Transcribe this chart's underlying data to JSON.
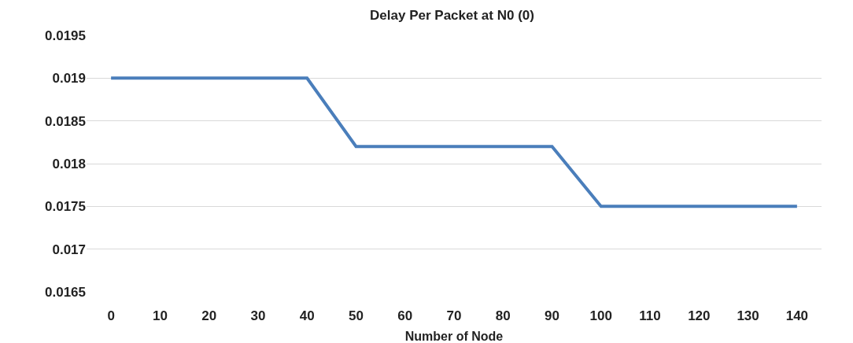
{
  "chart_data": {
    "type": "line",
    "title": "Delay Per Packet at N0 (0)",
    "xlabel": "Number of Node",
    "categories": [
      "0",
      "10",
      "20",
      "30",
      "40",
      "50",
      "60",
      "70",
      "80",
      "90",
      "100",
      "110",
      "120",
      "130",
      "140"
    ],
    "series": [
      {
        "color": "#4a7ebb",
        "values": [
          0.019,
          0.019,
          0.019,
          0.019,
          0.019,
          0.0182,
          0.0182,
          0.0182,
          0.0182,
          0.0182,
          0.0175,
          0.0175,
          0.0175,
          0.0175,
          0.0175
        ]
      }
    ],
    "ylim": [
      0.0165,
      0.0195
    ],
    "yticks": [
      {
        "value": 0.0165,
        "label": "0.0165"
      },
      {
        "value": 0.017,
        "label": "0.017"
      },
      {
        "value": 0.0175,
        "label": "0.0175"
      },
      {
        "value": 0.018,
        "label": "0.018"
      },
      {
        "value": 0.0185,
        "label": "0.0185"
      },
      {
        "value": 0.019,
        "label": "0.019"
      },
      {
        "value": 0.0195,
        "label": "0.0195"
      }
    ],
    "grid": "y",
    "marker": "none",
    "line_style": "solid"
  }
}
